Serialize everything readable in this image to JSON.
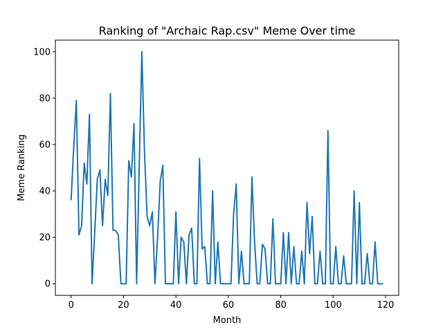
{
  "chart_data": {
    "type": "line",
    "title": "Ranking of \"Archaic Rap.csv\" Meme Over time",
    "xlabel": "Month",
    "ylabel": "Meme Ranking",
    "xlim": [
      -6,
      125
    ],
    "ylim": [
      -5,
      105
    ],
    "xticks": [
      0,
      20,
      40,
      60,
      80,
      100,
      120
    ],
    "yticks": [
      0,
      20,
      40,
      60,
      80,
      100
    ],
    "grid": false,
    "series": [
      {
        "name": "Ranking",
        "color": "#1f77b4",
        "x": [
          0,
          1,
          2,
          3,
          4,
          5,
          6,
          7,
          8,
          9,
          10,
          11,
          12,
          13,
          14,
          15,
          16,
          17,
          18,
          19,
          20,
          21,
          22,
          23,
          24,
          25,
          26,
          27,
          28,
          29,
          30,
          31,
          32,
          33,
          34,
          35,
          36,
          37,
          38,
          39,
          40,
          41,
          42,
          43,
          44,
          45,
          46,
          47,
          48,
          49,
          50,
          51,
          52,
          53,
          54,
          55,
          56,
          57,
          58,
          59,
          60,
          61,
          62,
          63,
          64,
          65,
          66,
          67,
          68,
          69,
          70,
          71,
          72,
          73,
          74,
          75,
          76,
          77,
          78,
          79,
          80,
          81,
          82,
          83,
          84,
          85,
          86,
          87,
          88,
          89,
          90,
          91,
          92,
          93,
          94,
          95,
          96,
          97,
          98,
          99,
          100,
          101,
          102,
          103,
          104,
          105,
          106,
          107,
          108,
          109,
          110,
          111,
          112,
          113,
          114,
          115,
          116,
          117,
          118,
          119
        ],
        "values": [
          36,
          59,
          79,
          21,
          25,
          52,
          43,
          73,
          0,
          22,
          45,
          49,
          25,
          45,
          38,
          82,
          23,
          23,
          21,
          0,
          0,
          0,
          53,
          46,
          69,
          0,
          51,
          100,
          57,
          29,
          25,
          31,
          0,
          20,
          44,
          51,
          0,
          0,
          0,
          0,
          31,
          0,
          20,
          18,
          0,
          21,
          24,
          0,
          0,
          54,
          15,
          16,
          0,
          0,
          40,
          0,
          18,
          0,
          0,
          0,
          0,
          0,
          30,
          43,
          0,
          14,
          0,
          0,
          0,
          46,
          18,
          0,
          0,
          17,
          15,
          0,
          0,
          28,
          0,
          0,
          0,
          22,
          0,
          22,
          0,
          16,
          0,
          0,
          14,
          0,
          35,
          13,
          29,
          0,
          0,
          14,
          0,
          0,
          66,
          0,
          0,
          16,
          0,
          0,
          12,
          0,
          0,
          0,
          40,
          0,
          35,
          0,
          0,
          13,
          0,
          0,
          18,
          0,
          0,
          0
        ]
      }
    ]
  }
}
